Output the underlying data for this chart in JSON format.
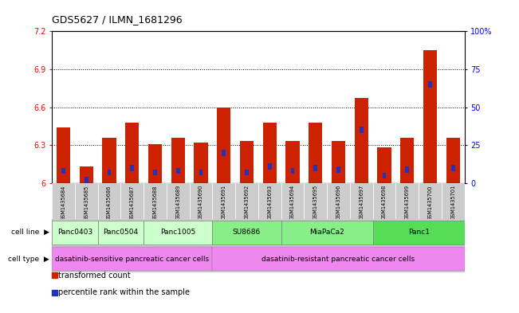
{
  "title": "GDS5627 / ILMN_1681296",
  "samples": [
    "GSM1435684",
    "GSM1435685",
    "GSM1435686",
    "GSM1435687",
    "GSM1435688",
    "GSM1435689",
    "GSM1435690",
    "GSM1435691",
    "GSM1435692",
    "GSM1435693",
    "GSM1435694",
    "GSM1435695",
    "GSM1435696",
    "GSM1435697",
    "GSM1435698",
    "GSM1435699",
    "GSM1435700",
    "GSM1435701"
  ],
  "transformed_count": [
    6.44,
    6.13,
    6.36,
    6.48,
    6.31,
    6.36,
    6.32,
    6.6,
    6.33,
    6.48,
    6.33,
    6.48,
    6.33,
    6.67,
    6.28,
    6.36,
    7.05,
    6.36
  ],
  "percentile_rank": [
    8,
    2,
    7,
    10,
    7,
    8,
    7,
    20,
    7,
    11,
    8,
    10,
    9,
    35,
    5,
    9,
    65,
    10
  ],
  "ymin": 6.0,
  "ymax": 7.2,
  "yticks": [
    6.0,
    6.3,
    6.6,
    6.9,
    7.2
  ],
  "ytick_labels": [
    "6",
    "6.3",
    "6.6",
    "6.9",
    "7.2"
  ],
  "right_yticks": [
    0,
    25,
    50,
    75,
    100
  ],
  "right_ytick_labels": [
    "0",
    "25",
    "50",
    "75",
    "100%"
  ],
  "bar_color": "#cc2200",
  "blue_color": "#2233bb",
  "bar_width": 0.6,
  "cell_lines": [
    {
      "label": "Panc0403",
      "start": 0,
      "end": 1,
      "color": "#ccffcc"
    },
    {
      "label": "Panc0504",
      "start": 2,
      "end": 3,
      "color": "#ccffcc"
    },
    {
      "label": "Panc1005",
      "start": 4,
      "end": 6,
      "color": "#ccffcc"
    },
    {
      "label": "SU8686",
      "start": 7,
      "end": 9,
      "color": "#88ee88"
    },
    {
      "label": "MiaPaCa2",
      "start": 10,
      "end": 13,
      "color": "#88ee88"
    },
    {
      "label": "Panc1",
      "start": 14,
      "end": 17,
      "color": "#55dd55"
    }
  ],
  "cell_types": [
    {
      "label": "dasatinib-sensitive pancreatic cancer cells",
      "start": 0,
      "end": 6,
      "color": "#ee88ee"
    },
    {
      "label": "dasatinib-resistant pancreatic cancer cells",
      "start": 7,
      "end": 17,
      "color": "#ee88ee"
    }
  ],
  "sample_box_color": "#cccccc",
  "legend_items": [
    {
      "color": "#cc2200",
      "label": "transformed count"
    },
    {
      "color": "#2233bb",
      "label": "percentile rank within the sample"
    }
  ]
}
